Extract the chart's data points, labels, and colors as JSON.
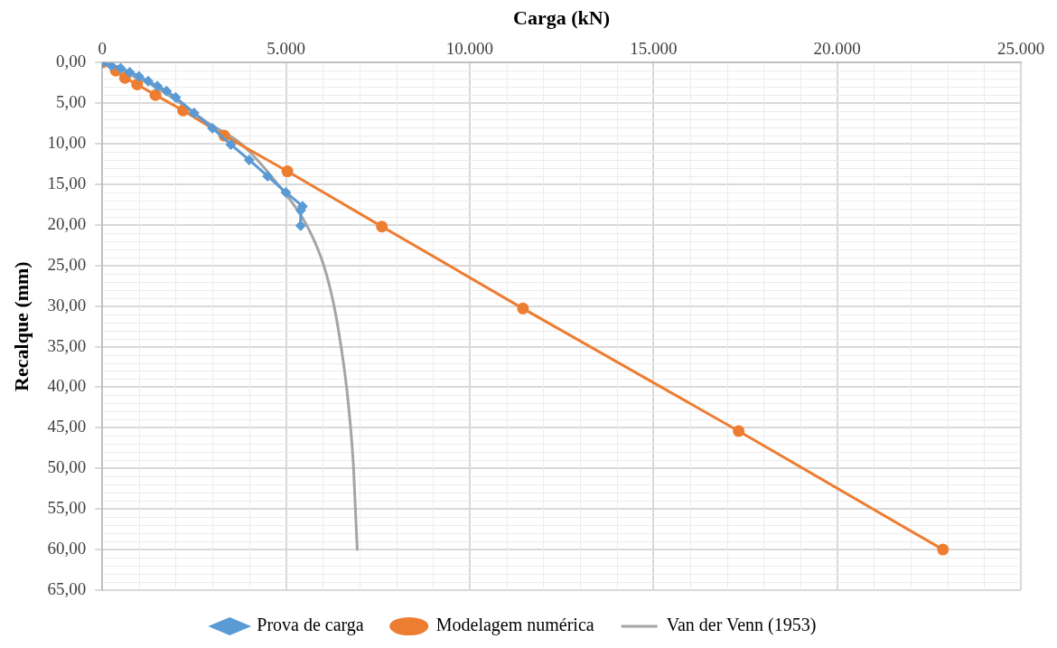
{
  "chart_data": {
    "type": "line",
    "xlabel": "Carga (kN)",
    "ylabel": "Recalque (mm)",
    "xlim": [
      0,
      25000
    ],
    "xticks": [
      0,
      {
        "value": 5000,
        "label": "5.000"
      },
      {
        "value": 10000,
        "label": "10.000"
      },
      {
        "value": 15000,
        "label": "15.000"
      },
      {
        "value": 20000,
        "label": "20.000"
      },
      {
        "value": 25000,
        "label": "25.000"
      }
    ],
    "ylim": [
      65,
      0
    ],
    "yticks": [
      {
        "value": 0,
        "label": "0,00"
      },
      {
        "value": 5,
        "label": "5,00"
      },
      {
        "value": 10,
        "label": "10,00"
      },
      {
        "value": 15,
        "label": "15,00"
      },
      {
        "value": 20,
        "label": "20,00"
      },
      {
        "value": 25,
        "label": "25,00"
      },
      {
        "value": 30,
        "label": "30,00"
      },
      {
        "value": 35,
        "label": "35,00"
      },
      {
        "value": 40,
        "label": "40,00"
      },
      {
        "value": 45,
        "label": "45,00"
      },
      {
        "value": 50,
        "label": "50,00"
      },
      {
        "value": 55,
        "label": "55,00"
      },
      {
        "value": 60,
        "label": "60,00"
      },
      {
        "value": 65,
        "label": "65,00"
      }
    ],
    "grid": true,
    "legend": "bottom",
    "line_style": "solid",
    "series": [
      {
        "name": "Prova de carga",
        "color": "#5b9bd5",
        "marker": "diamond",
        "x": [
          0,
          250,
          500,
          750,
          1000,
          1250,
          1500,
          1750,
          2000,
          2500,
          3000,
          3500,
          4000,
          4500,
          5000,
          5450,
          5400,
          5400
        ],
        "values": [
          0,
          0.4,
          0.7,
          1.2,
          1.7,
          2.3,
          2.9,
          3.5,
          4.3,
          6.2,
          8.1,
          10.1,
          12.0,
          14.0,
          16.0,
          17.7,
          18.2,
          20.1
        ]
      },
      {
        "name": "Modelagem numérica",
        "color": "#ed7d31",
        "marker": "circle",
        "x": [
          0,
          370,
          620,
          950,
          1450,
          2200,
          3320,
          5040,
          7610,
          11450,
          17320,
          22880
        ],
        "values": [
          0,
          1.0,
          1.9,
          2.7,
          4.0,
          5.9,
          9.0,
          13.4,
          20.2,
          30.3,
          45.4,
          60
        ]
      },
      {
        "name": "Van der Venn (1953)",
        "color": "#a5a5a5",
        "marker": "none",
        "x": [
          0,
          500,
          1000,
          1450,
          2120,
          2900,
          3780,
          4780,
          5560,
          6030,
          6310,
          6500,
          6650,
          6760,
          6840,
          6890,
          6940
        ],
        "values": [
          0,
          1,
          2,
          3,
          5,
          7.5,
          10,
          15,
          20,
          25,
          30,
          35,
          40,
          45,
          50,
          55,
          60
        ]
      }
    ]
  }
}
